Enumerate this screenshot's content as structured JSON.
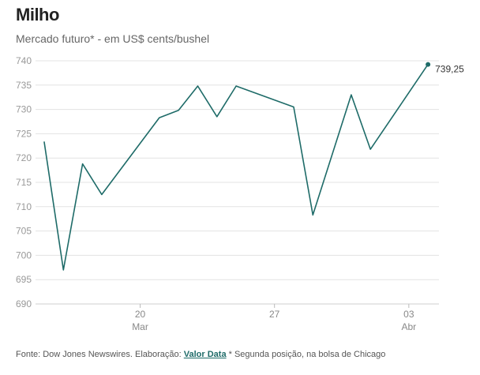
{
  "chart_data": {
    "type": "line",
    "title": "Milho",
    "subtitle": "Mercado futuro* - em US$ cents/bushel",
    "ylim": [
      690,
      740
    ],
    "yticks": [
      "690",
      "695",
      "700",
      "705",
      "710",
      "715",
      "720",
      "725",
      "730",
      "735",
      "740"
    ],
    "xlim": [
      0,
      20.2
    ],
    "xticks": [
      {
        "x": 5,
        "label": "20",
        "sublabel": "Mar"
      },
      {
        "x": 12,
        "label": "27",
        "sublabel": ""
      },
      {
        "x": 19,
        "label": "03",
        "sublabel": "Abr"
      }
    ],
    "series": [
      {
        "name": "Milho",
        "color": "#1e6b68",
        "x": [
          0,
          1,
          2,
          3,
          6,
          7,
          8,
          9,
          10,
          13,
          14,
          16,
          17,
          20
        ],
        "values": [
          723.3,
          697.0,
          718.8,
          712.5,
          728.3,
          729.8,
          734.8,
          728.5,
          734.8,
          730.5,
          708.3,
          733.0,
          721.8,
          739.25
        ]
      }
    ],
    "last_value_label": "739,25"
  },
  "footer": {
    "prefix": "Fonte: Dow Jones Newswires. Elaboração: ",
    "brand": "Valor Data",
    "note": " * Segunda posição, na bolsa de Chicago"
  }
}
